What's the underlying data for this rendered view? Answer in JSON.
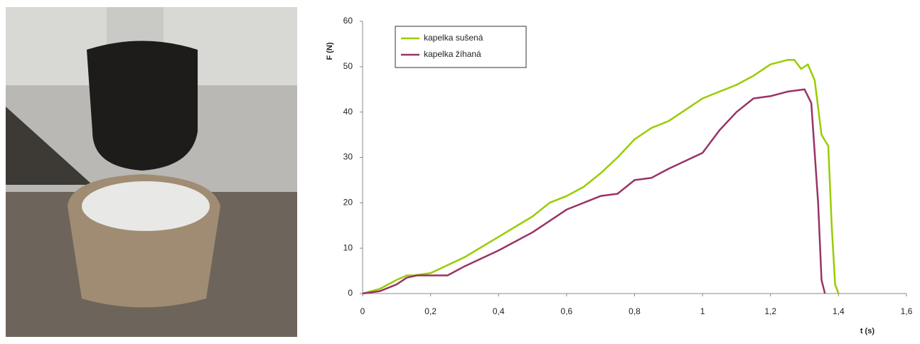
{
  "chart_data": {
    "type": "line",
    "y_label": "F (N)",
    "x_label": "t (s)",
    "xlim": [
      0,
      1.6
    ],
    "ylim": [
      0,
      60
    ],
    "xticks": [
      0,
      {
        "value": 0.2,
        "label": "0,2"
      },
      {
        "value": 0.4,
        "label": "0,4"
      },
      {
        "value": 0.6,
        "label": "0,6"
      },
      {
        "value": 0.8,
        "label": "0,8"
      },
      1,
      {
        "value": 1.2,
        "label": "1,2"
      },
      {
        "value": 1.4,
        "label": "1,4"
      },
      {
        "value": 1.6,
        "label": "1,6"
      }
    ],
    "yticks": [
      0,
      10,
      20,
      30,
      40,
      50,
      60
    ],
    "grid": false,
    "legend": "upper left",
    "series": [
      {
        "name": "kapelka sušená",
        "color": "#99cc00",
        "x": [
          0,
          0.05,
          0.1,
          0.13,
          0.15,
          0.2,
          0.3,
          0.4,
          0.5,
          0.55,
          0.6,
          0.65,
          0.7,
          0.75,
          0.8,
          0.85,
          0.9,
          1.0,
          1.05,
          1.1,
          1.15,
          1.2,
          1.25,
          1.27,
          1.29,
          1.31,
          1.33,
          1.35,
          1.37,
          1.38,
          1.39,
          1.4
        ],
        "values": [
          0,
          1,
          3,
          4,
          4,
          4.5,
          8,
          12.5,
          17,
          20,
          21.5,
          23.5,
          26.5,
          30,
          34,
          36.5,
          38,
          43,
          44.5,
          46,
          48,
          50.5,
          51.5,
          51.5,
          49.5,
          50.5,
          47,
          35,
          32.5,
          15,
          2,
          0
        ]
      },
      {
        "name": "kapelka žíhaná",
        "color": "#993366",
        "x": [
          0,
          0.05,
          0.1,
          0.13,
          0.16,
          0.2,
          0.25,
          0.3,
          0.4,
          0.5,
          0.6,
          0.7,
          0.75,
          0.8,
          0.85,
          0.9,
          1.0,
          1.05,
          1.1,
          1.15,
          1.2,
          1.25,
          1.3,
          1.32,
          1.34,
          1.35,
          1.36
        ],
        "values": [
          0,
          0.5,
          2,
          3.5,
          4,
          4,
          4,
          6,
          9.5,
          13.5,
          18.5,
          21.5,
          22,
          25,
          25.5,
          27.5,
          31,
          36,
          40,
          43,
          43.5,
          44.5,
          45,
          42,
          20,
          3,
          0
        ]
      }
    ]
  }
}
